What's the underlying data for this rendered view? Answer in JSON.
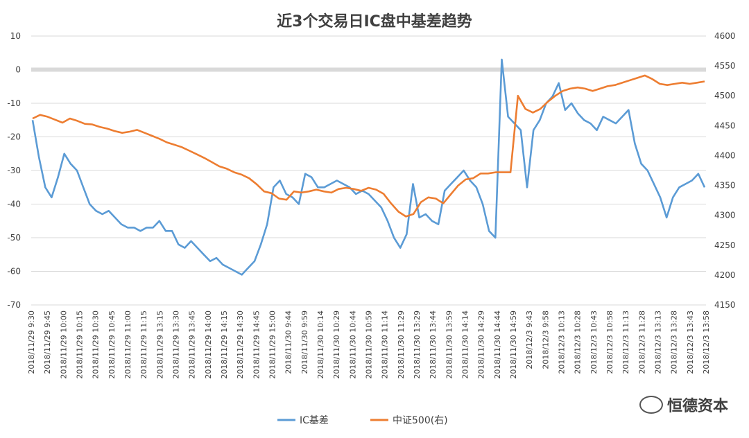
{
  "colors": {
    "basis": "#5B9BD5",
    "index": "#ED7D31",
    "grid": "#D9D9D9",
    "zero_band": "#D9D9D9",
    "text": "#404040"
  },
  "watermark": {
    "text": "恒德资本",
    "icon": "wechat-moments-icon"
  },
  "chart_data": {
    "type": "line",
    "title": "近3个交易日IC盘中基差趋势",
    "y_left": {
      "range": [
        -70,
        10
      ],
      "ticks": [
        10,
        0,
        -10,
        -20,
        -30,
        -40,
        -50,
        -60,
        -70
      ]
    },
    "y_right": {
      "range": [
        4150,
        4600
      ],
      "ticks": [
        4600,
        4550,
        4500,
        4450,
        4400,
        4350,
        4300,
        4250,
        4200,
        4150
      ]
    },
    "x_tick_labels": [
      "2018/11/29 9:30",
      "2018/11/29 9:45",
      "2018/11/29 10:00",
      "2018/11/29 10:15",
      "2018/11/29 10:30",
      "2018/11/29 10:45",
      "2018/11/29 11:00",
      "2018/11/29 11:15",
      "2018/11/29 13:15",
      "2018/11/29 13:30",
      "2018/11/29 13:45",
      "2018/11/29 14:00",
      "2018/11/29 14:15",
      "2018/11/29 14:30",
      "2018/11/29 14:45",
      "2018/11/29 15:00",
      "2018/11/30 9:44",
      "2018/11/30 9:59",
      "2018/11/30 10:14",
      "2018/11/30 10:29",
      "2018/11/30 10:44",
      "2018/11/30 10:59",
      "2018/11/30 11:14",
      "2018/11/30 11:29",
      "2018/11/30 13:29",
      "2018/11/30 13:44",
      "2018/11/30 13:59",
      "2018/11/30 14:14",
      "2018/11/30 14:29",
      "2018/11/30 14:44",
      "2018/11/30 14:59",
      "2018/12/3 9:43",
      "2018/12/3 9:58",
      "2018/12/3 10:13",
      "2018/12/3 10:28",
      "2018/12/3 10:43",
      "2018/12/3 10:58",
      "2018/12/3 11:13",
      "2018/12/3 11:28",
      "2018/12/3 13:13",
      "2018/12/3 13:28",
      "2018/12/3 13:43",
      "2018/12/3 13:58"
    ],
    "series": [
      {
        "name": "IC基差",
        "axis": "left",
        "values": [
          -15,
          -26,
          -35,
          -38,
          -32,
          -25,
          -28,
          -30,
          -35,
          -40,
          -42,
          -43,
          -42,
          -44,
          -46,
          -47,
          -47,
          -48,
          -47,
          -47,
          -45,
          -48,
          -48,
          -52,
          -53,
          -51,
          -53,
          -55,
          -57,
          -56,
          -58,
          -59,
          -60,
          -61,
          -59,
          -57,
          -52,
          -46,
          -35,
          -33,
          -37,
          -38,
          -40,
          -31,
          -32,
          -35,
          -35,
          -34,
          -33,
          -34,
          -35,
          -37,
          -36,
          -37,
          -39,
          -41,
          -45,
          -50,
          -53,
          -49,
          -34,
          -44,
          -43,
          -45,
          -46,
          -36,
          -34,
          -32,
          -30,
          -33,
          -35,
          -40,
          -48,
          -50,
          3,
          -14,
          -16,
          -18,
          -35,
          -18,
          -15,
          -10,
          -8,
          -4,
          -12,
          -10,
          -13,
          -15,
          -16,
          -18,
          -14,
          -15,
          -16,
          -14,
          -12,
          -22,
          -28,
          -30,
          -34,
          -38,
          -44,
          -38,
          -35,
          -34,
          -33,
          -31,
          -35
        ]
      },
      {
        "name": "中证500(右)",
        "axis": "right",
        "values": [
          4462,
          4468,
          4465,
          4460,
          4455,
          4462,
          4458,
          4453,
          4452,
          4448,
          4445,
          4441,
          4438,
          4440,
          4443,
          4438,
          4433,
          4428,
          4422,
          4418,
          4414,
          4408,
          4402,
          4396,
          4389,
          4382,
          4378,
          4372,
          4368,
          4362,
          4352,
          4340,
          4337,
          4328,
          4326,
          4340,
          4338,
          4340,
          4343,
          4340,
          4338,
          4344,
          4346,
          4344,
          4341,
          4346,
          4343,
          4336,
          4320,
          4306,
          4298,
          4302,
          4322,
          4330,
          4328,
          4320,
          4335,
          4350,
          4360,
          4362,
          4370,
          4370,
          4372,
          4372,
          4372,
          4500,
          4478,
          4472,
          4478,
          4490,
          4500,
          4508,
          4512,
          4514,
          4512,
          4508,
          4512,
          4516,
          4518,
          4522,
          4526,
          4530,
          4534,
          4528,
          4520,
          4518,
          4520,
          4522,
          4520,
          4522,
          4524
        ]
      }
    ],
    "legend": {
      "position": "bottom-center"
    },
    "grid": true
  }
}
